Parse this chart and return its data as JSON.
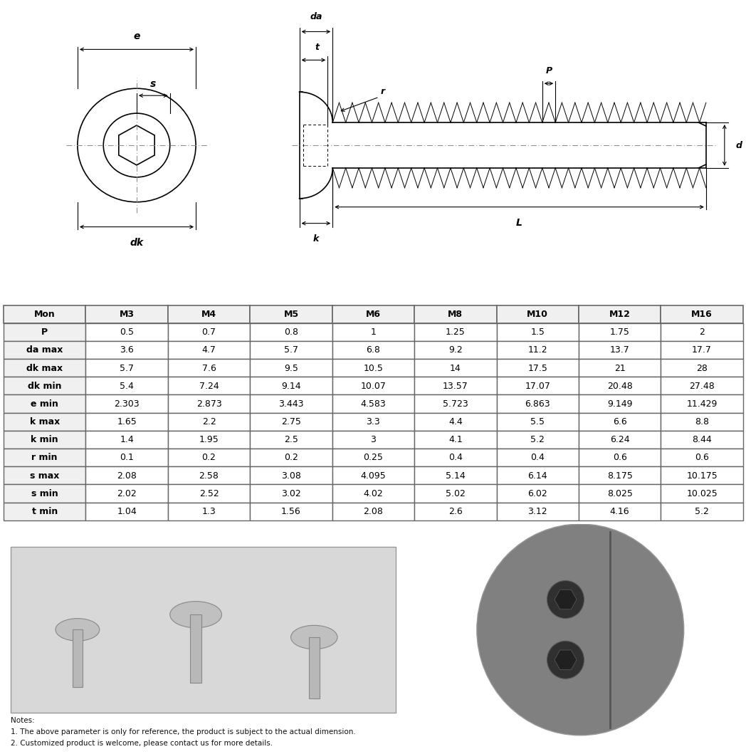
{
  "table_headers": [
    "Mon",
    "M3",
    "M4",
    "M5",
    "M6",
    "M8",
    "M10",
    "M12",
    "M16"
  ],
  "table_rows": [
    [
      "P",
      "0.5",
      "0.7",
      "0.8",
      "1",
      "1.25",
      "1.5",
      "1.75",
      "2"
    ],
    [
      "da max",
      "3.6",
      "4.7",
      "5.7",
      "6.8",
      "9.2",
      "11.2",
      "13.7",
      "17.7"
    ],
    [
      "dk max",
      "5.7",
      "7.6",
      "9.5",
      "10.5",
      "14",
      "17.5",
      "21",
      "28"
    ],
    [
      "dk min",
      "5.4",
      "7.24",
      "9.14",
      "10.07",
      "13.57",
      "17.07",
      "20.48",
      "27.48"
    ],
    [
      "e min",
      "2.303",
      "2.873",
      "3.443",
      "4.583",
      "5.723",
      "6.863",
      "9.149",
      "11.429"
    ],
    [
      "k max",
      "1.65",
      "2.2",
      "2.75",
      "3.3",
      "4.4",
      "5.5",
      "6.6",
      "8.8"
    ],
    [
      "k min",
      "1.4",
      "1.95",
      "2.5",
      "3",
      "4.1",
      "5.2",
      "6.24",
      "8.44"
    ],
    [
      "r min",
      "0.1",
      "0.2",
      "0.2",
      "0.25",
      "0.4",
      "0.4",
      "0.6",
      "0.6"
    ],
    [
      "s max",
      "2.08",
      "2.58",
      "3.08",
      "4.095",
      "5.14",
      "6.14",
      "8.175",
      "10.175"
    ],
    [
      "s min",
      "2.02",
      "2.52",
      "3.02",
      "4.02",
      "5.02",
      "6.02",
      "8.025",
      "10.025"
    ],
    [
      "t min",
      "1.04",
      "1.3",
      "1.56",
      "2.08",
      "2.6",
      "3.12",
      "4.16",
      "5.2"
    ]
  ],
  "header_bg": "#f0f0f0",
  "row_bg": "#ffffff",
  "border_color": "#666666",
  "text_color_header": "#000000",
  "text_color_data": "#000000",
  "note1": "Notes:",
  "note2": "1. The above parameter is only for reference, the product is subject to the actual dimension.",
  "note3": "2. Customized product is welcome, please contact us for more details.",
  "drawing_color": "#000000",
  "bg_color": "#ffffff",
  "centerline_color": "#888888"
}
